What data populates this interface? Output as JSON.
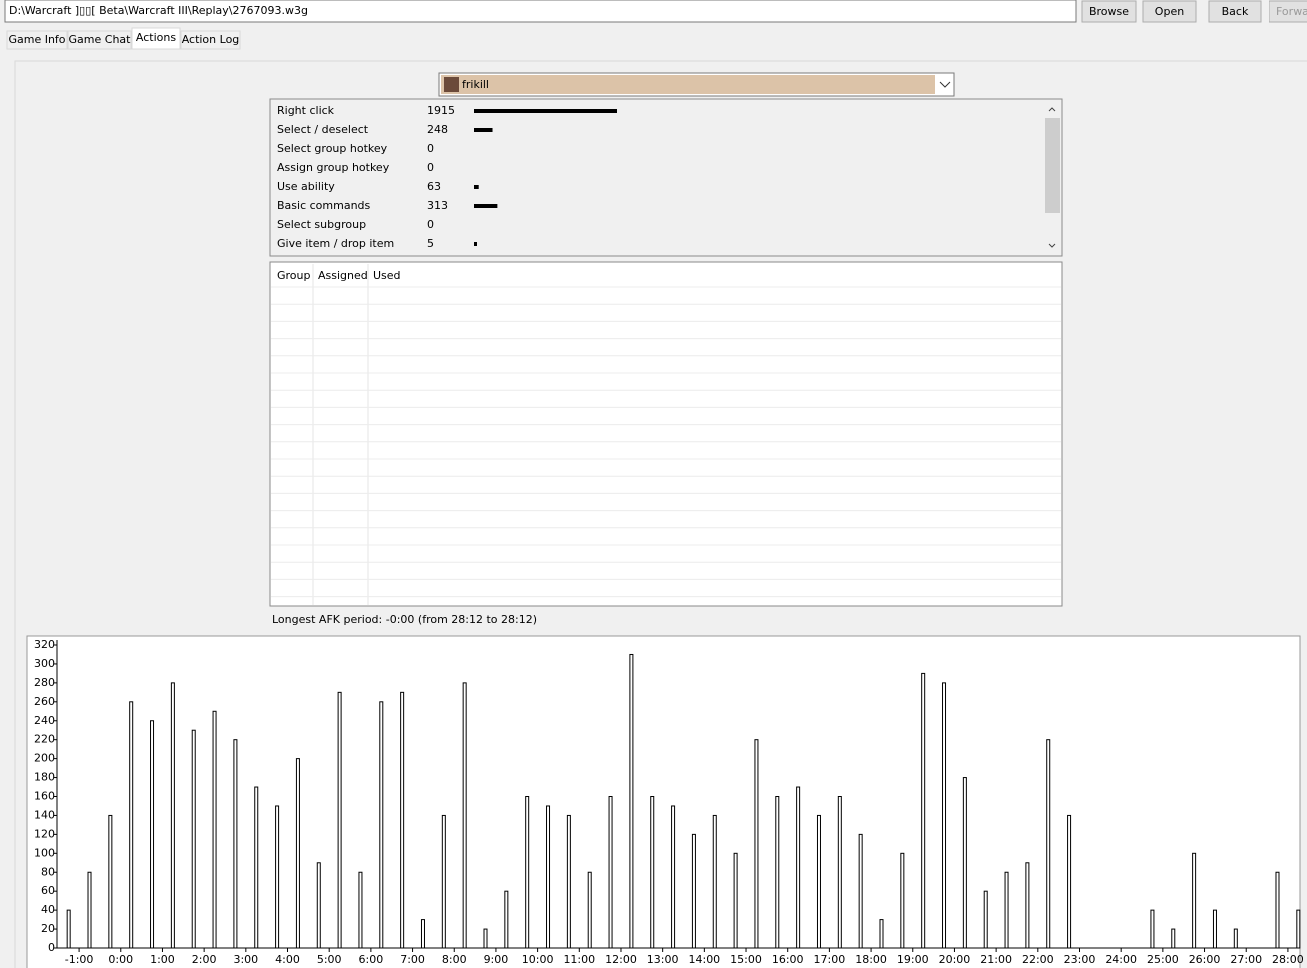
{
  "toolbar": {
    "path": "D:\\Warcraft ]▯▯[ Beta\\Warcraft III\\Replay\\2767093.w3g",
    "buttons": [
      "Browse",
      "Open",
      "Back",
      "Forward"
    ]
  },
  "tabs": [
    "Game Info",
    "Game Chat",
    "Actions",
    "Action Log"
  ],
  "player": "frikill",
  "actions": [
    {
      "name": "Right click",
      "value": 1915
    },
    {
      "name": "Select / deselect",
      "value": 248
    },
    {
      "name": "Select group hotkey",
      "value": 0
    },
    {
      "name": "Assign group hotkey",
      "value": 0
    },
    {
      "name": "Use ability",
      "value": 63
    },
    {
      "name": "Basic commands",
      "value": 313
    },
    {
      "name": "Select subgroup",
      "value": 0
    },
    {
      "name": "Give item / drop item",
      "value": 5
    }
  ],
  "groups": {
    "columns": [
      "Group",
      "Assigned",
      "Used"
    ]
  },
  "afk": "Longest AFK period: -0:00 (from 28:12 to 28:12)",
  "chart_data": {
    "type": "bar",
    "color": "#000000",
    "x": [
      -1.25,
      -0.75,
      -0.25,
      0.25,
      0.75,
      1.25,
      1.75,
      2.25,
      2.75,
      3.25,
      3.75,
      4.25,
      4.75,
      5.25,
      5.75,
      6.25,
      6.75,
      7.25,
      7.75,
      8.25,
      8.75,
      9.25,
      9.75,
      10.25,
      10.75,
      11.25,
      11.75,
      12.25,
      12.75,
      13.25,
      13.75,
      14.25,
      14.75,
      15.25,
      15.75,
      16.25,
      16.75,
      17.25,
      17.75,
      18.25,
      18.75,
      19.25,
      19.75,
      20.25,
      20.75,
      21.25,
      21.75,
      22.25,
      22.75,
      23.25,
      23.75,
      24.25,
      24.75,
      25.25,
      25.75,
      26.25,
      26.75,
      27.25,
      27.75,
      28.25
    ],
    "values": [
      40,
      80,
      140,
      260,
      240,
      280,
      230,
      250,
      220,
      170,
      150,
      200,
      90,
      270,
      80,
      260,
      270,
      30,
      140,
      280,
      20,
      60,
      160,
      150,
      140,
      80,
      160,
      310,
      160,
      150,
      120,
      140,
      100,
      220,
      160,
      170,
      140,
      160,
      120,
      30,
      100,
      290,
      280,
      180,
      60,
      80,
      90,
      220,
      140,
      0,
      0,
      0,
      40,
      20,
      100,
      40,
      20,
      0,
      80,
      40
    ],
    "xlim": [
      -1.53,
      28.29
    ],
    "ylim": [
      0,
      320
    ],
    "xticks": [
      {
        "value": -1,
        "label": "-1:00"
      },
      {
        "value": 0,
        "label": "0:00"
      },
      {
        "value": 1,
        "label": "1:00"
      },
      {
        "value": 2,
        "label": "2:00"
      },
      {
        "value": 3,
        "label": "3:00"
      },
      {
        "value": 4,
        "label": "4:00"
      },
      {
        "value": 5,
        "label": "5:00"
      },
      {
        "value": 6,
        "label": "6:00"
      },
      {
        "value": 7,
        "label": "7:00"
      },
      {
        "value": 8,
        "label": "8:00"
      },
      {
        "value": 9,
        "label": "9:00"
      },
      {
        "value": 10,
        "label": "10:00"
      },
      {
        "value": 11,
        "label": "11:00"
      },
      {
        "value": 12,
        "label": "12:00"
      },
      {
        "value": 13,
        "label": "13:00"
      },
      {
        "value": 14,
        "label": "14:00"
      },
      {
        "value": 15,
        "label": "15:00"
      },
      {
        "value": 16,
        "label": "16:00"
      },
      {
        "value": 17,
        "label": "17:00"
      },
      {
        "value": 18,
        "label": "18:00"
      },
      {
        "value": 19,
        "label": "19:00"
      },
      {
        "value": 20,
        "label": "20:00"
      },
      {
        "value": 21,
        "label": "21:00"
      },
      {
        "value": 22,
        "label": "22:00"
      },
      {
        "value": 23,
        "label": "23:00"
      },
      {
        "value": 24,
        "label": "24:00"
      },
      {
        "value": 25,
        "label": "25:00"
      },
      {
        "value": 26,
        "label": "26:00"
      },
      {
        "value": 27,
        "label": "27:00"
      },
      {
        "value": 28,
        "label": "28:00"
      }
    ],
    "yticks": [
      0,
      20,
      40,
      60,
      80,
      100,
      120,
      140,
      160,
      180,
      200,
      220,
      240,
      260,
      280,
      300,
      320
    ]
  }
}
